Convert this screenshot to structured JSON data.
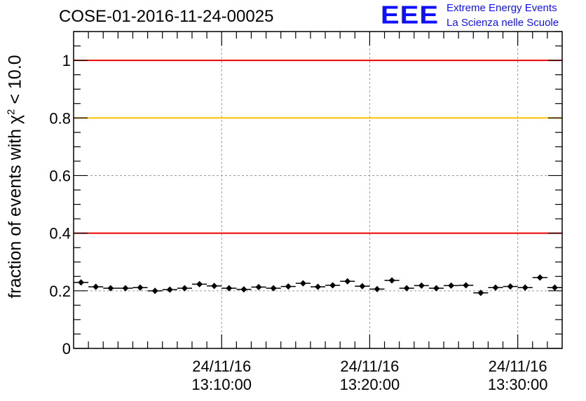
{
  "chart_data": {
    "type": "scatter",
    "title": "COSE-01-2016-11-24-00025",
    "ylabel": {
      "pre": "fraction of events with ",
      "sym": "χ",
      "sup": "2",
      "post": " < 10.0"
    },
    "ylim": [
      0,
      1.1
    ],
    "yticks": [
      0,
      0.2,
      0.4,
      0.6,
      0.8,
      1
    ],
    "ytick_labels": [
      "0",
      "0.2",
      "0.4",
      "0.6",
      "0.8",
      "1"
    ],
    "xlim_minutes": [
      0,
      33
    ],
    "xticks_minutes": [
      10,
      20,
      30
    ],
    "xtick_labels": [
      {
        "date": "24/11/16",
        "time": "13:10:00"
      },
      {
        "date": "24/11/16",
        "time": "13:20:00"
      },
      {
        "date": "24/11/16",
        "time": "13:30:00"
      }
    ],
    "grid": true,
    "reference_lines": [
      {
        "y": 1.0,
        "color": "#ee0000"
      },
      {
        "y": 0.8,
        "color": "#ffc000"
      },
      {
        "y": 0.4,
        "color": "#ee0000"
      }
    ],
    "bin_width_minutes": 1,
    "x_minutes": [
      0.5,
      1.5,
      2.5,
      3.5,
      4.5,
      5.5,
      6.5,
      7.5,
      8.5,
      9.5,
      10.5,
      11.5,
      12.5,
      13.5,
      14.5,
      15.5,
      16.5,
      17.5,
      18.5,
      19.5,
      20.5,
      21.5,
      22.5,
      23.5,
      24.5,
      25.5,
      26.5,
      27.5,
      28.5,
      29.5,
      30.5,
      31.5,
      32.5
    ],
    "values": [
      0.229,
      0.214,
      0.209,
      0.209,
      0.211,
      0.2,
      0.204,
      0.209,
      0.223,
      0.217,
      0.209,
      0.205,
      0.213,
      0.209,
      0.215,
      0.226,
      0.214,
      0.219,
      0.233,
      0.216,
      0.206,
      0.236,
      0.209,
      0.218,
      0.209,
      0.218,
      0.219,
      0.193,
      0.211,
      0.215,
      0.211,
      0.246,
      0.211
    ]
  },
  "logo": {
    "mark": "EEE",
    "line1": "Extreme Energy Events",
    "line2": "La Scienza nelle Scuole"
  }
}
